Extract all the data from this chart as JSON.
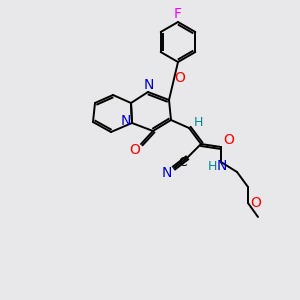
{
  "bg_color": "#e8e8ea",
  "atom_colors": {
    "C": "#000000",
    "N": "#0000cc",
    "O": "#ff0000",
    "F": "#ff00ff",
    "H": "#008b8b"
  },
  "bond_color": "#000000",
  "lw": 1.4,
  "fs": 9.5
}
